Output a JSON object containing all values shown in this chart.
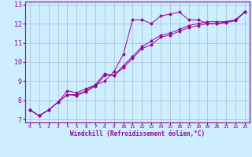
{
  "xlabel": "Windchill (Refroidissement éolien,°C)",
  "bg_color": "#cceeff",
  "grid_color": "#aabbcc",
  "line_color": "#990099",
  "xmin": 0,
  "xmax": 23,
  "ymin": 7,
  "ymax": 13,
  "yticks": [
    7,
    8,
    9,
    10,
    11,
    12,
    13
  ],
  "xticks": [
    0,
    1,
    2,
    3,
    4,
    5,
    6,
    7,
    8,
    9,
    10,
    11,
    12,
    13,
    14,
    15,
    16,
    17,
    18,
    19,
    20,
    21,
    22,
    23
  ],
  "line1_x": [
    0,
    1,
    2,
    3,
    4,
    5,
    6,
    7,
    8,
    9,
    10,
    11,
    12,
    13,
    14,
    15,
    16,
    17,
    18,
    19,
    20,
    21,
    22,
    23
  ],
  "line1_y": [
    7.5,
    7.2,
    7.5,
    7.9,
    8.5,
    8.4,
    8.6,
    8.8,
    9.0,
    9.5,
    10.4,
    12.2,
    12.2,
    12.0,
    12.4,
    12.5,
    12.6,
    12.2,
    12.2,
    12.0,
    12.0,
    12.1,
    12.2,
    12.6
  ],
  "line2_x": [
    0,
    1,
    2,
    3,
    4,
    5,
    6,
    7,
    8,
    9,
    10,
    11,
    12,
    13,
    14,
    15,
    16,
    17,
    18,
    19,
    20,
    21,
    22,
    23
  ],
  "line2_y": [
    7.5,
    7.2,
    7.5,
    7.9,
    8.3,
    8.3,
    8.5,
    8.8,
    9.4,
    9.3,
    9.8,
    10.3,
    10.8,
    11.1,
    11.4,
    11.5,
    11.7,
    11.9,
    12.0,
    12.1,
    12.1,
    12.1,
    12.2,
    12.6
  ],
  "line3_x": [
    0,
    1,
    2,
    3,
    4,
    5,
    6,
    7,
    8,
    9,
    10,
    11,
    12,
    13,
    14,
    15,
    16,
    17,
    18,
    19,
    20,
    21,
    22,
    23
  ],
  "line3_y": [
    7.5,
    7.2,
    7.5,
    7.9,
    8.3,
    8.25,
    8.45,
    8.75,
    9.3,
    9.3,
    9.7,
    10.2,
    10.7,
    10.9,
    11.3,
    11.4,
    11.6,
    11.8,
    11.9,
    12.0,
    12.0,
    12.05,
    12.15,
    12.6
  ],
  "xlabel_fontsize": 5.5,
  "ytick_fontsize": 6,
  "xtick_fontsize": 4.5
}
